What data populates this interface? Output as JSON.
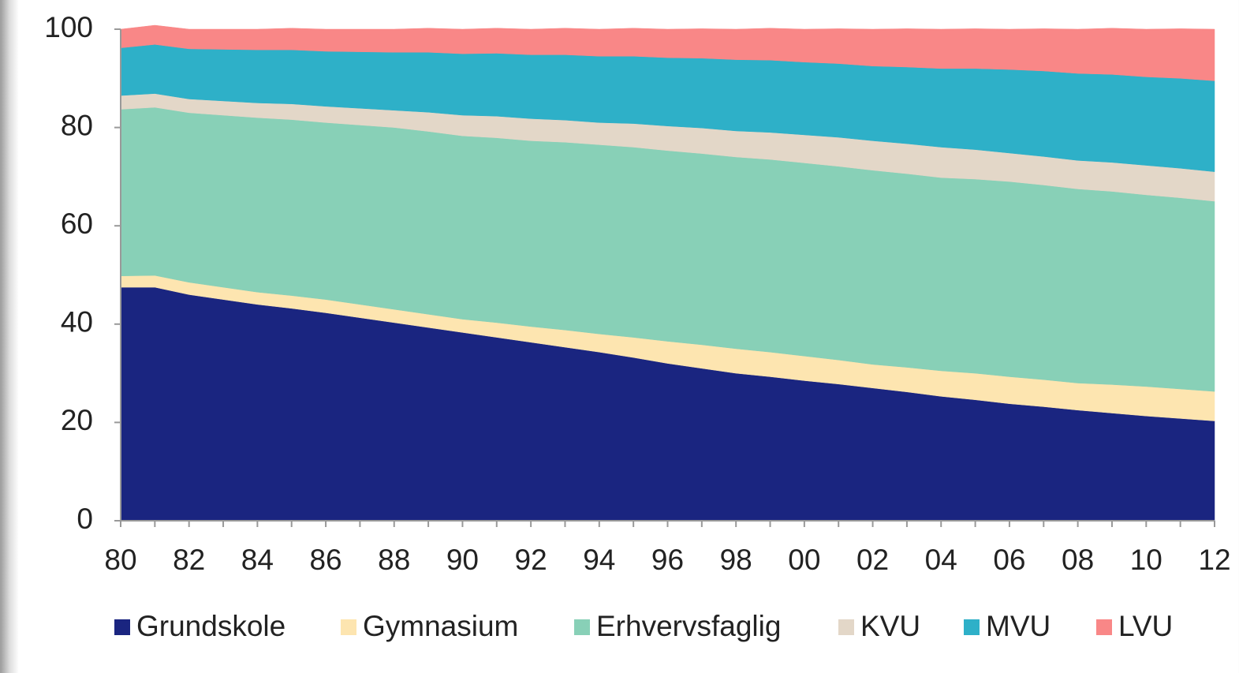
{
  "chart_data": {
    "type": "stacked-area",
    "categories": [
      "80",
      null,
      "82",
      null,
      "84",
      null,
      "86",
      null,
      "88",
      null,
      "90",
      null,
      "92",
      null,
      "94",
      null,
      "96",
      null,
      "98",
      null,
      "00",
      null,
      "02",
      null,
      "04",
      null,
      "06",
      null,
      "08",
      null,
      "10",
      null,
      "12"
    ],
    "series": [
      {
        "name": "Grundskole",
        "color": "#1a2580",
        "values": [
          47.5,
          47.5,
          46,
          45,
          44,
          43.2,
          42.3,
          41.3,
          40.3,
          39.3,
          38.3,
          37.3,
          36.3,
          35.3,
          34.3,
          33.2,
          32,
          31,
          30,
          29.3,
          28.5,
          27.8,
          27,
          26.2,
          25.3,
          24.6,
          23.8,
          23.2,
          22.5,
          21.9,
          21.3,
          20.8,
          20.3
        ]
      },
      {
        "name": "Gymnasium",
        "color": "#fde5b0",
        "values": [
          2.3,
          2.4,
          2.5,
          2.5,
          2.5,
          2.6,
          2.7,
          2.7,
          2.7,
          2.7,
          2.7,
          3,
          3.2,
          3.5,
          3.7,
          4.1,
          4.5,
          4.8,
          5,
          5,
          5,
          4.9,
          4.8,
          5,
          5.2,
          5.4,
          5.5,
          5.5,
          5.5,
          5.8,
          6,
          6,
          6
        ]
      },
      {
        "name": "Erhvervsfaglig",
        "color": "#88d0b7",
        "values": [
          33.9,
          34.2,
          34.5,
          35,
          35.5,
          35.8,
          36,
          36.5,
          37,
          37.2,
          37.3,
          37.6,
          37.8,
          38.2,
          38.5,
          38.7,
          38.8,
          38.9,
          39,
          39.2,
          39.3,
          39.4,
          39.5,
          39.4,
          39.3,
          39.5,
          39.7,
          39.6,
          39.5,
          39.3,
          39,
          38.9,
          38.7
        ]
      },
      {
        "name": "KVU",
        "color": "#e3d7c8",
        "values": [
          2.8,
          2.8,
          2.8,
          2.9,
          3,
          3.2,
          3.3,
          3.4,
          3.5,
          3.9,
          4.2,
          4.4,
          4.5,
          4.5,
          4.5,
          4.8,
          5,
          5.2,
          5.3,
          5.5,
          5.7,
          5.9,
          6,
          6.1,
          6.2,
          6,
          5.8,
          5.8,
          5.8,
          5.9,
          6,
          6,
          6
        ]
      },
      {
        "name": "MVU",
        "color": "#2eb0c8",
        "values": [
          9.7,
          10,
          10.2,
          10.5,
          10.8,
          11,
          11.2,
          11.5,
          11.8,
          12.2,
          12.5,
          12.8,
          13,
          13.3,
          13.5,
          13.7,
          13.9,
          14.2,
          14.5,
          14.7,
          14.8,
          15,
          15.2,
          15.6,
          16,
          16.5,
          17,
          17.4,
          17.7,
          17.9,
          18,
          18.3,
          18.5
        ]
      },
      {
        "name": "LVU",
        "color": "#f98787",
        "values": [
          3.8,
          3.9,
          4,
          4.1,
          4.2,
          4.4,
          4.5,
          4.6,
          4.7,
          4.9,
          5,
          5.1,
          5.2,
          5.4,
          5.5,
          5.7,
          5.8,
          6,
          6.2,
          6.5,
          6.7,
          7.1,
          7.5,
          7.8,
          8,
          8.1,
          8.2,
          8.6,
          9,
          9.4,
          9.7,
          10.1,
          10.5
        ]
      }
    ],
    "ylim": [
      0,
      100
    ],
    "yticks": [
      0,
      20,
      40,
      60,
      80,
      100
    ],
    "legend": "bottom"
  }
}
